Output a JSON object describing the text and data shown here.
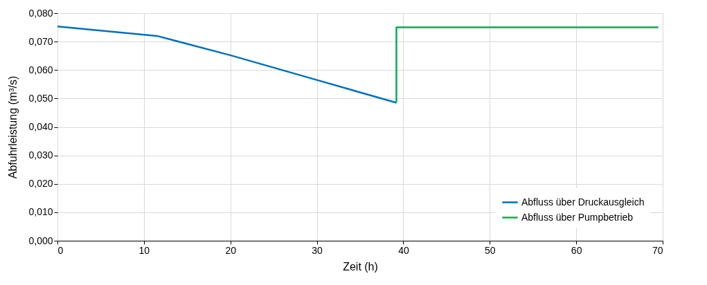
{
  "chart_data": {
    "type": "line",
    "xlabel": "Zeit (h)",
    "ylabel": "Abfuhrleistung (m³/s)",
    "series": [
      {
        "name": "Abfluss über Druckausgleich",
        "color": "#0070c0",
        "x": [
          0,
          11.5,
          20,
          30,
          39.2
        ],
        "values": [
          0.0753,
          0.072,
          0.0652,
          0.0565,
          0.0485
        ]
      },
      {
        "name": "Abfluss über Pumpbetrieb",
        "color": "#00b050",
        "x": [
          39.2,
          39.2,
          69.5
        ],
        "values": [
          0.0485,
          0.075,
          0.075
        ]
      }
    ],
    "xlim": [
      0,
      70
    ],
    "xticks": [
      0,
      10,
      20,
      30,
      40,
      50,
      60,
      70
    ],
    "ylim": [
      0,
      0.08
    ],
    "yticks": [
      {
        "value": 0,
        "label": "0,000"
      },
      {
        "value": 0.01,
        "label": "0,010"
      },
      {
        "value": 0.02,
        "label": "0,020"
      },
      {
        "value": 0.03,
        "label": "0,030"
      },
      {
        "value": 0.04,
        "label": "0,040"
      },
      {
        "value": 0.05,
        "label": "0,050"
      },
      {
        "value": 0.06,
        "label": "0,060"
      },
      {
        "value": 0.07,
        "label": "0,070"
      },
      {
        "value": 0.08,
        "label": "0,080"
      }
    ],
    "grid": true,
    "legend": "bottom right",
    "marker": "none",
    "line_style": "solid"
  }
}
